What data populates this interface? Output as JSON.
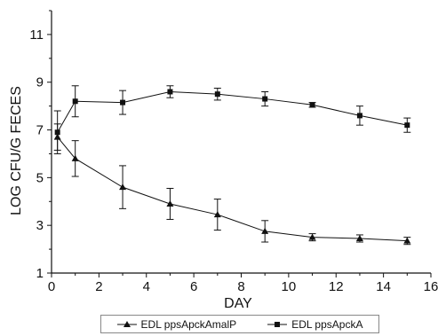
{
  "chart_data": {
    "type": "line",
    "xlabel": "DAY",
    "ylabel": "LOG CFU/G FECES",
    "xlim": [
      0,
      16
    ],
    "ylim": [
      1,
      12
    ],
    "xticks": [
      0,
      2,
      4,
      6,
      8,
      10,
      12,
      14,
      16
    ],
    "yticks": [
      1,
      3,
      5,
      7,
      9,
      11
    ],
    "grid": false,
    "legend_position": "bottom",
    "series": [
      {
        "name": "EDL ppsApckAmalP",
        "marker": "triangle",
        "color": "#111111",
        "x": [
          0.25,
          1,
          3,
          5,
          7,
          9,
          11,
          13,
          15
        ],
        "y": [
          6.7,
          5.8,
          4.6,
          3.9,
          3.45,
          2.75,
          2.5,
          2.45,
          2.35
        ],
        "err": [
          0.55,
          0.75,
          0.9,
          0.65,
          0.65,
          0.45,
          0.15,
          0.15,
          0.15
        ]
      },
      {
        "name": "EDL ppsApckA",
        "marker": "square",
        "color": "#111111",
        "x": [
          0.25,
          1,
          3,
          5,
          7,
          9,
          11,
          13,
          15
        ],
        "y": [
          6.9,
          8.2,
          8.15,
          8.6,
          8.5,
          8.3,
          8.05,
          7.6,
          7.2
        ],
        "err": [
          0.9,
          0.65,
          0.5,
          0.25,
          0.25,
          0.3,
          0.1,
          0.4,
          0.3
        ]
      }
    ]
  }
}
